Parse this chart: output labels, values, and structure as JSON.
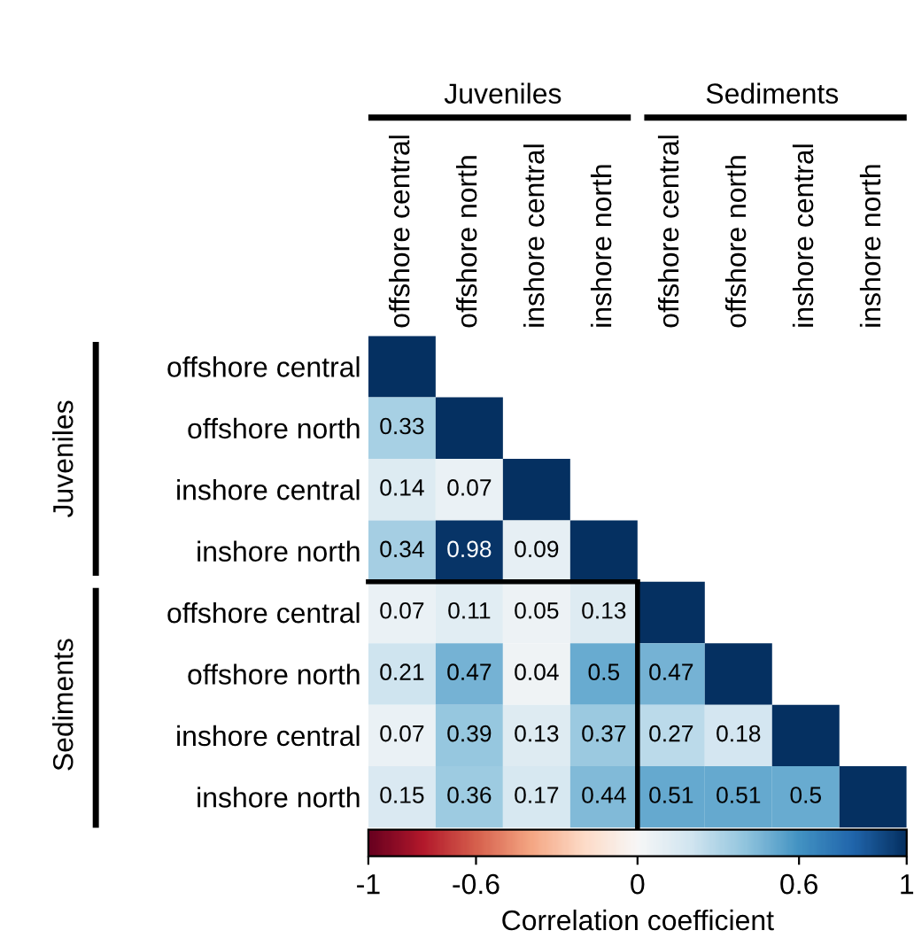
{
  "chart_data": {
    "type": "heatmap",
    "categories": [
      "offshore central",
      "offshore north",
      "inshore central",
      "inshore north",
      "offshore central",
      "offshore north",
      "inshore central",
      "inshore north"
    ],
    "y_categories": [
      "offshore central",
      "offshore north",
      "inshore central",
      "inshore north",
      "offshore central",
      "offshore north",
      "inshore central",
      "inshore north"
    ],
    "cells": [
      [
        1,
        null,
        null,
        null,
        null,
        null,
        null,
        null
      ],
      [
        0.33,
        1,
        null,
        null,
        null,
        null,
        null,
        null
      ],
      [
        0.14,
        0.07,
        1,
        null,
        null,
        null,
        null,
        null
      ],
      [
        0.34,
        0.98,
        0.09,
        1,
        null,
        null,
        null,
        null
      ],
      [
        0.07,
        0.11,
        0.05,
        0.13,
        1,
        null,
        null,
        null
      ],
      [
        0.21,
        0.47,
        0.04,
        0.5,
        0.47,
        1,
        null,
        null
      ],
      [
        0.07,
        0.39,
        0.13,
        0.37,
        0.27,
        0.18,
        1,
        null
      ],
      [
        0.15,
        0.36,
        0.17,
        0.44,
        0.51,
        0.51,
        0.5,
        1
      ]
    ],
    "cell_labels": [
      [
        null,
        null,
        null,
        null,
        null,
        null,
        null,
        null
      ],
      [
        "0.33",
        null,
        null,
        null,
        null,
        null,
        null,
        null
      ],
      [
        "0.14",
        "0.07",
        null,
        null,
        null,
        null,
        null,
        null
      ],
      [
        "0.34",
        "0.98",
        "0.09",
        null,
        null,
        null,
        null,
        null
      ],
      [
        "0.07",
        "0.11",
        "0.05",
        "0.13",
        null,
        null,
        null,
        null
      ],
      [
        "0.21",
        "0.47",
        "0.04",
        "0.5",
        "0.47",
        null,
        null,
        null
      ],
      [
        "0.07",
        "0.39",
        "0.13",
        "0.37",
        "0.27",
        "0.18",
        null,
        null
      ],
      [
        "0.15",
        "0.36",
        "0.17",
        "0.44",
        "0.51",
        "0.51",
        "0.5",
        null
      ]
    ],
    "clim": [
      -1,
      1
    ],
    "cticks": [
      -1,
      -0.6,
      0,
      0.6,
      1
    ],
    "clabel": "Correlation coefficient",
    "annotations": [
      "Juveniles",
      "Sediments",
      "Juveniles",
      "Sediments"
    ]
  }
}
